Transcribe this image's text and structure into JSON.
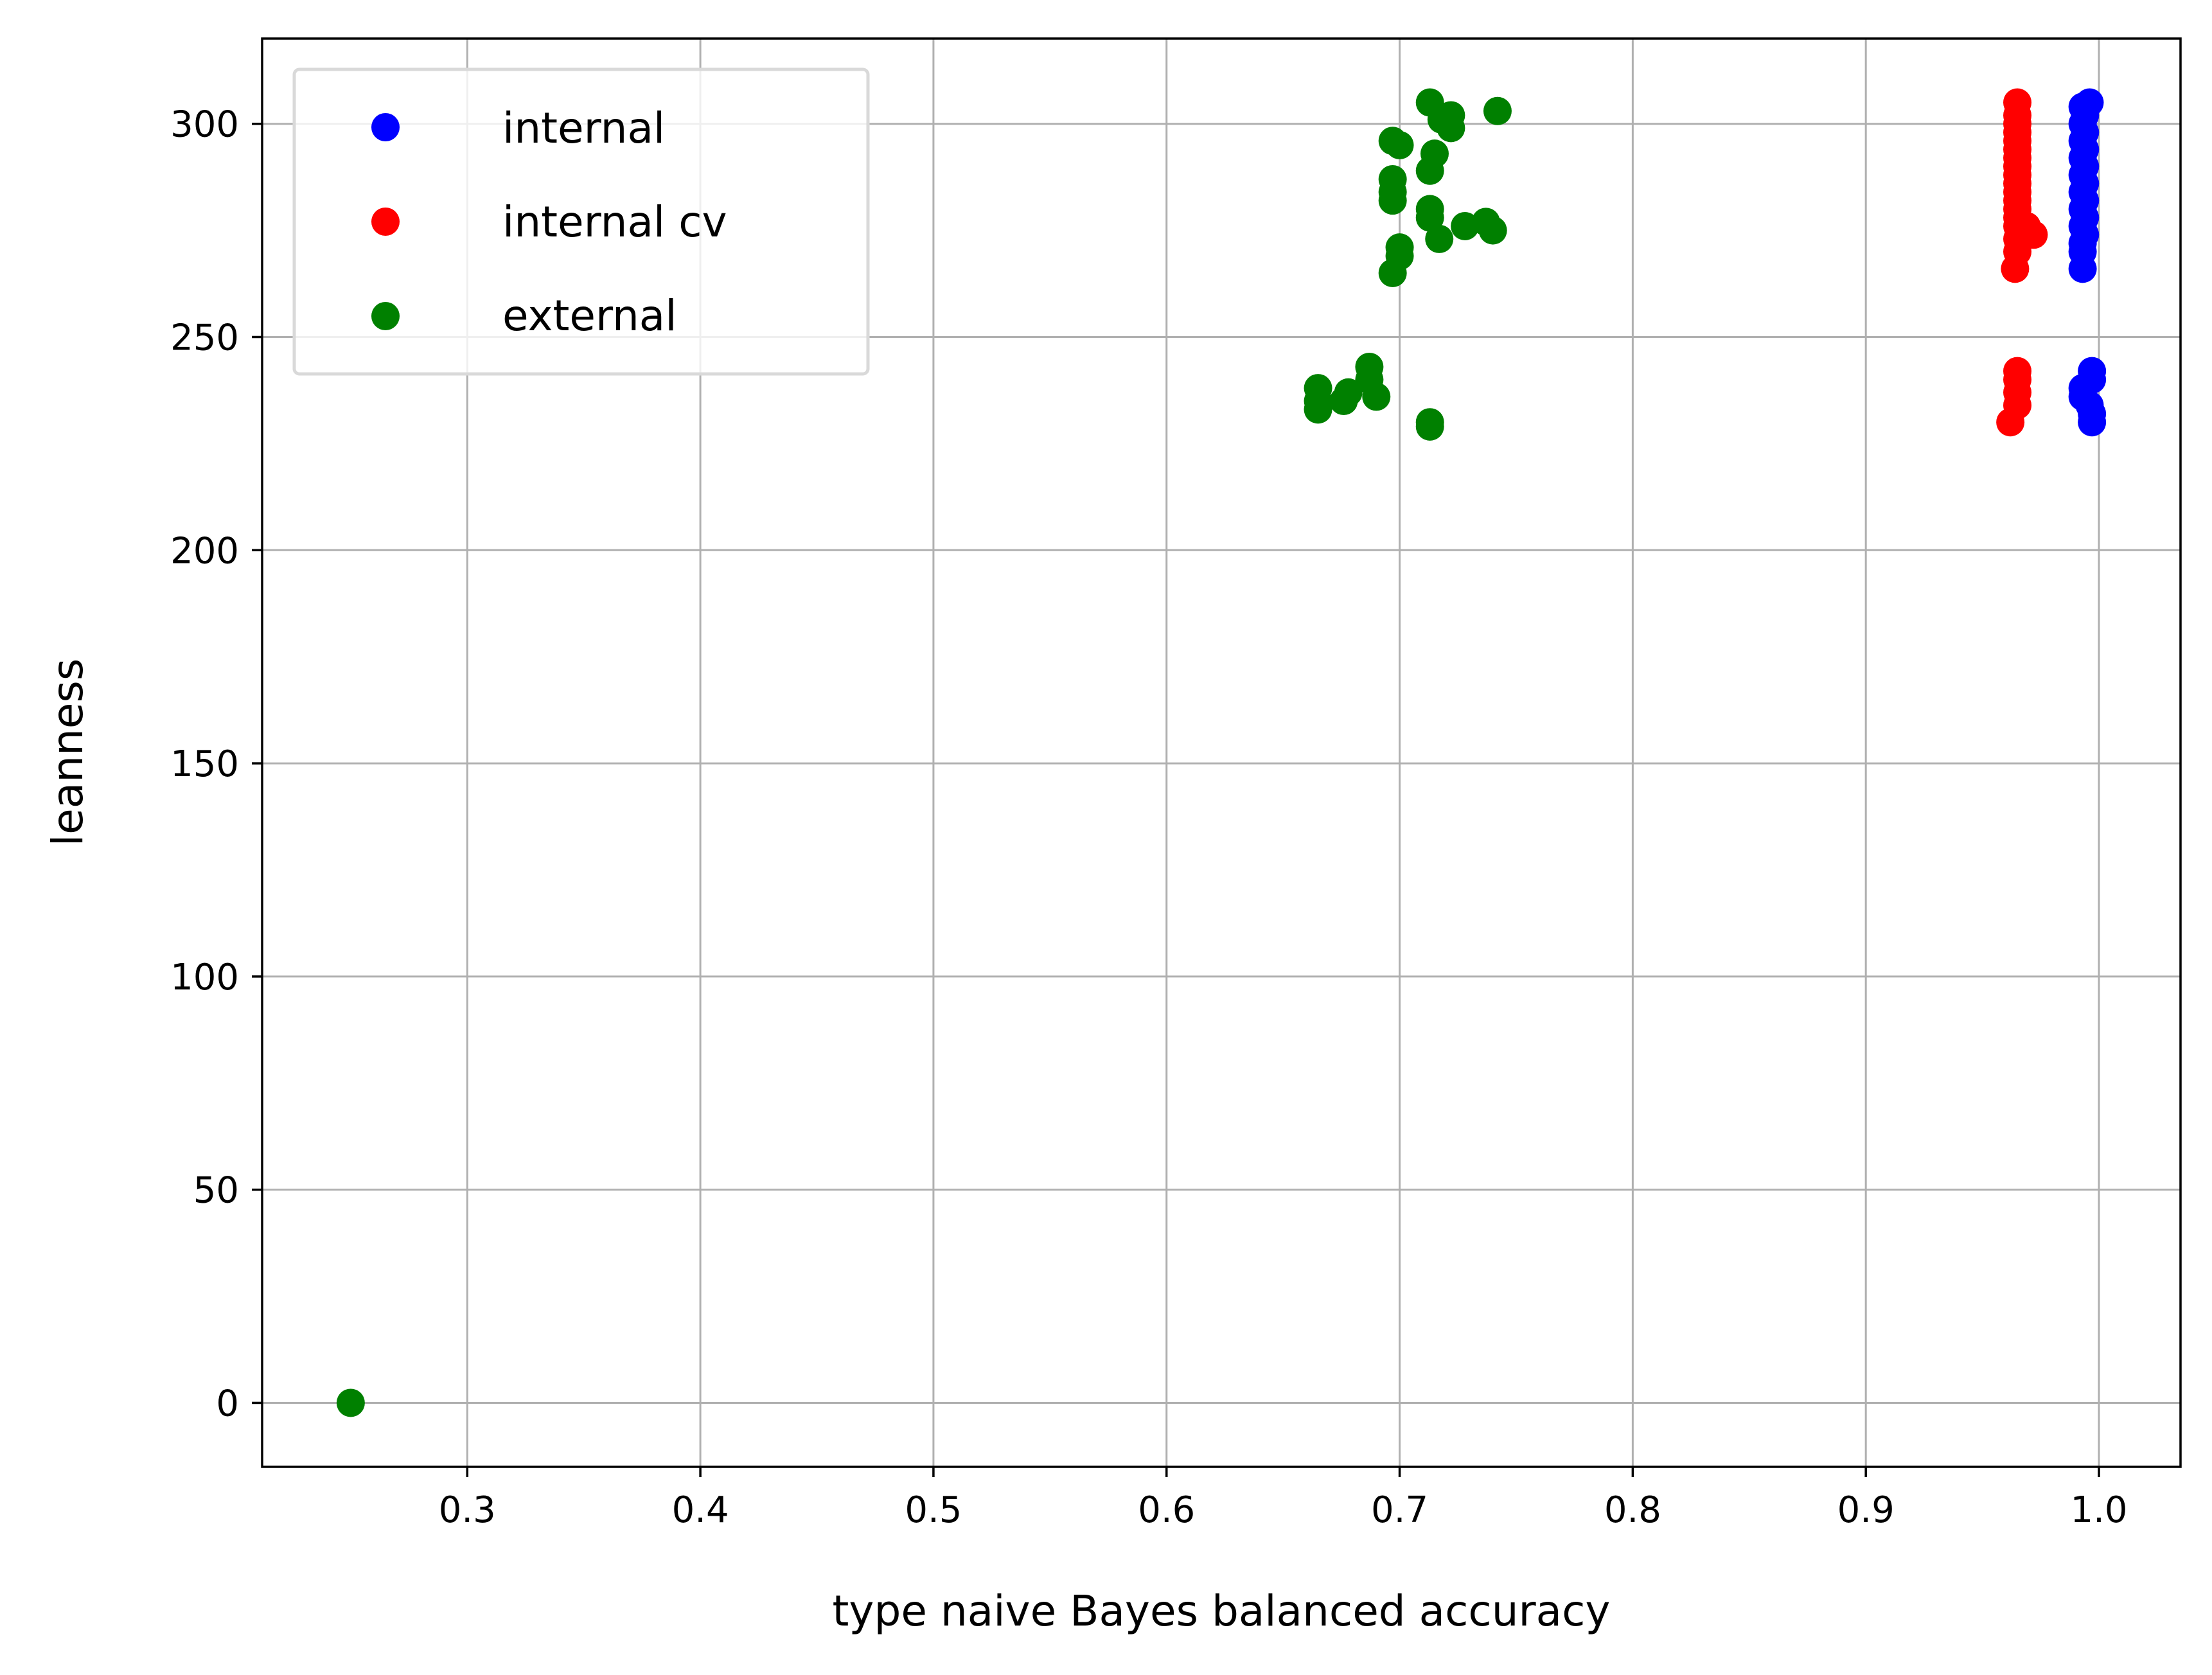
{
  "chart_data": {
    "type": "scatter",
    "xlabel": "type naive Bayes balanced accuracy",
    "ylabel": "leanness",
    "xlim": [
      0.212,
      1.035
    ],
    "ylim": [
      -15,
      320
    ],
    "xticks": [
      0.3,
      0.4,
      0.5,
      0.6,
      0.7,
      0.8,
      0.9,
      1.0
    ],
    "xtick_labels": [
      "0.3",
      "0.4",
      "0.5",
      "0.6",
      "0.7",
      "0.8",
      "0.9",
      "1.0"
    ],
    "yticks": [
      0,
      50,
      100,
      150,
      200,
      250,
      300
    ],
    "ytick_labels": [
      "0",
      "50",
      "100",
      "150",
      "200",
      "250",
      "300"
    ],
    "grid": true,
    "legend_position": "top-left",
    "series": [
      {
        "name": "internal",
        "color": "#0000ff",
        "points": [
          [
            0.993,
            304
          ],
          [
            0.994,
            302
          ],
          [
            0.996,
            305
          ],
          [
            0.993,
            300
          ],
          [
            0.994,
            298
          ],
          [
            0.993,
            296
          ],
          [
            0.994,
            294
          ],
          [
            0.993,
            292
          ],
          [
            0.994,
            290
          ],
          [
            0.993,
            288
          ],
          [
            0.994,
            286
          ],
          [
            0.993,
            284
          ],
          [
            0.994,
            282
          ],
          [
            0.993,
            280
          ],
          [
            0.994,
            278
          ],
          [
            0.993,
            276
          ],
          [
            0.994,
            274
          ],
          [
            0.993,
            272
          ],
          [
            0.993,
            270
          ],
          [
            0.993,
            266
          ],
          [
            0.997,
            242
          ],
          [
            0.997,
            240
          ],
          [
            0.993,
            238
          ],
          [
            0.993,
            236
          ],
          [
            0.996,
            234
          ],
          [
            0.997,
            232
          ],
          [
            0.997,
            230
          ]
        ]
      },
      {
        "name": "internal cv",
        "color": "#ff0000",
        "points": [
          [
            0.965,
            305
          ],
          [
            0.965,
            302
          ],
          [
            0.965,
            300
          ],
          [
            0.965,
            298
          ],
          [
            0.965,
            296
          ],
          [
            0.965,
            294
          ],
          [
            0.965,
            292
          ],
          [
            0.965,
            290
          ],
          [
            0.965,
            288
          ],
          [
            0.965,
            286
          ],
          [
            0.965,
            284
          ],
          [
            0.965,
            282
          ],
          [
            0.965,
            280
          ],
          [
            0.965,
            278
          ],
          [
            0.965,
            276
          ],
          [
            0.969,
            276
          ],
          [
            0.972,
            274
          ],
          [
            0.965,
            273
          ],
          [
            0.965,
            270
          ],
          [
            0.964,
            266
          ],
          [
            0.965,
            242
          ],
          [
            0.965,
            240
          ],
          [
            0.965,
            237
          ],
          [
            0.965,
            234
          ],
          [
            0.962,
            230
          ]
        ]
      },
      {
        "name": "external",
        "color": "#008000",
        "points": [
          [
            0.713,
            305
          ],
          [
            0.722,
            302
          ],
          [
            0.742,
            303
          ],
          [
            0.718,
            301
          ],
          [
            0.722,
            299
          ],
          [
            0.697,
            296
          ],
          [
            0.7,
            295
          ],
          [
            0.715,
            293
          ],
          [
            0.713,
            289
          ],
          [
            0.697,
            287
          ],
          [
            0.697,
            284
          ],
          [
            0.697,
            282
          ],
          [
            0.713,
            280
          ],
          [
            0.713,
            278
          ],
          [
            0.728,
            276
          ],
          [
            0.737,
            277
          ],
          [
            0.74,
            275
          ],
          [
            0.717,
            273
          ],
          [
            0.7,
            271
          ],
          [
            0.7,
            269
          ],
          [
            0.697,
            265
          ],
          [
            0.687,
            243
          ],
          [
            0.687,
            240
          ],
          [
            0.665,
            238
          ],
          [
            0.678,
            237
          ],
          [
            0.69,
            236
          ],
          [
            0.665,
            235
          ],
          [
            0.676,
            235
          ],
          [
            0.665,
            233
          ],
          [
            0.713,
            230
          ],
          [
            0.713,
            229
          ],
          [
            0.25,
            0
          ]
        ]
      }
    ]
  }
}
